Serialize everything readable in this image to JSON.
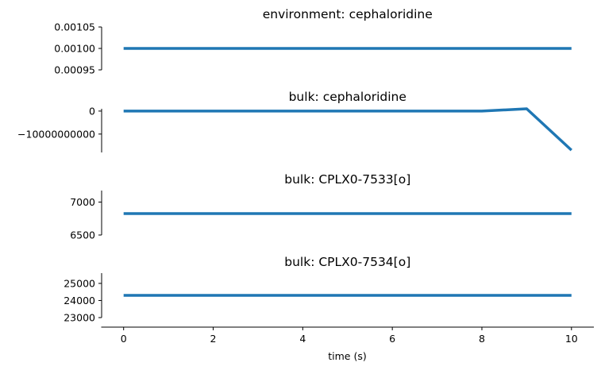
{
  "chart_data": {
    "type": "line",
    "xlabel": "time (s)",
    "x_ticks": [
      0,
      2,
      4,
      6,
      8,
      10
    ],
    "xlim": [
      -0.5,
      10.5
    ],
    "line_color": "#1f77b4",
    "subplots": [
      {
        "title": "environment: cephaloridine",
        "x": [
          0,
          1,
          2,
          3,
          4,
          5,
          6,
          7,
          8,
          9,
          10
        ],
        "y": [
          0.001,
          0.001,
          0.001,
          0.001,
          0.001,
          0.001,
          0.001,
          0.001,
          0.001,
          0.001,
          0.001
        ],
        "ylim": [
          0.00095,
          0.00105
        ],
        "y_ticks": [
          0.00095,
          0.001,
          0.00105
        ],
        "y_tick_labels": [
          "0.00095",
          "0.00100",
          "0.00105"
        ]
      },
      {
        "title": "bulk: cephaloridine",
        "x": [
          0,
          1,
          2,
          3,
          4,
          5,
          6,
          7,
          8,
          9,
          10
        ],
        "y": [
          0,
          0,
          0,
          0,
          0,
          0,
          0,
          0,
          0,
          1000000000,
          -17000000000
        ],
        "ylim": [
          -18000000000,
          1000000000
        ],
        "y_ticks": [
          0,
          -10000000000
        ],
        "y_tick_labels": [
          "0",
          "−10000000000"
        ]
      },
      {
        "title": "bulk: CPLX0-7533[o]",
        "x": [
          0,
          1,
          2,
          3,
          4,
          5,
          6,
          7,
          8,
          9,
          10
        ],
        "y": [
          6825,
          6825,
          6825,
          6825,
          6825,
          6825,
          6825,
          6825,
          6825,
          6825,
          6825
        ],
        "ylim": [
          6500,
          7175
        ],
        "y_ticks": [
          6500,
          7000
        ],
        "y_tick_labels": [
          "6500",
          "7000"
        ]
      },
      {
        "title": "bulk: CPLX0-7534[o]",
        "x": [
          0,
          1,
          2,
          3,
          4,
          5,
          6,
          7,
          8,
          9,
          10
        ],
        "y": [
          24300,
          24300,
          24300,
          24300,
          24300,
          24300,
          24300,
          24300,
          24300,
          24300,
          24300
        ],
        "ylim": [
          23000,
          25600
        ],
        "y_ticks": [
          23000,
          24000,
          25000
        ],
        "y_tick_labels": [
          "23000",
          "24000",
          "25000"
        ]
      }
    ]
  }
}
